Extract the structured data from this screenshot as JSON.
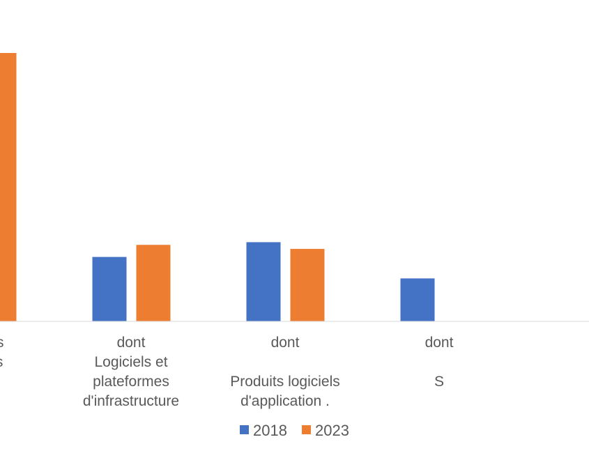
{
  "chart_data": {
    "type": "bar",
    "categories": [
      {
        "lines": [
          "Produits",
          "logiciels"
        ]
      },
      {
        "lines": [
          "dont",
          "Logiciels et",
          "plateformes",
          "d'infrastructure"
        ]
      },
      {
        "lines": [
          "dont",
          "",
          "Produits logiciels",
          "d'application ."
        ]
      },
      {
        "lines": [
          "dont",
          "",
          "S"
        ]
      }
    ],
    "series": [
      {
        "name": "2018",
        "color": "#4472C4",
        "values": [
          null,
          24,
          29.5,
          16
        ]
      },
      {
        "name": "2023",
        "color": "#ED7D31",
        "values": [
          100,
          28.5,
          27,
          null
        ]
      }
    ],
    "ylim": [
      0,
      100
    ],
    "grid": false,
    "legend": "bottom-center"
  }
}
